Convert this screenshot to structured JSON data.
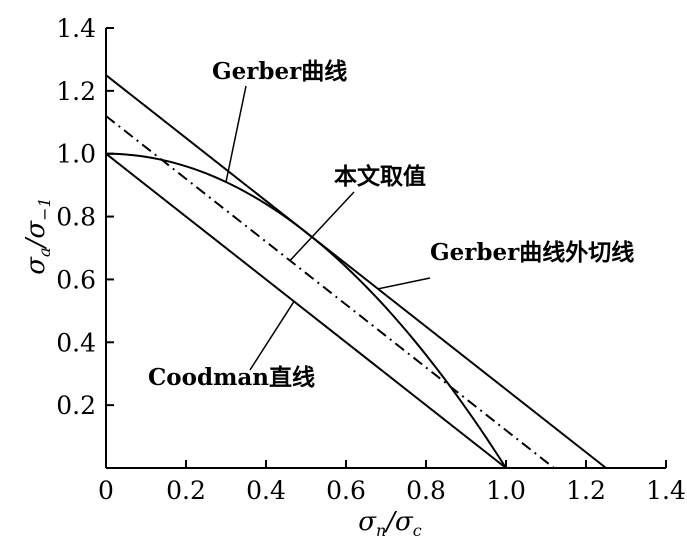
{
  "chart_data": {
    "type": "line",
    "title": "",
    "xlabel": "σn/σc",
    "ylabel": "σa/σ−1",
    "xlim": [
      0,
      1.4
    ],
    "ylim": [
      0,
      1.4
    ],
    "xticks": [
      "0",
      "0.2",
      "0.4",
      "0.6",
      "0.8",
      "1.0",
      "1.2",
      "1.4"
    ],
    "yticks": [
      "0.2",
      "0.4",
      "0.6",
      "0.8",
      "1.0",
      "1.2",
      "1.4"
    ],
    "grid": false,
    "series": [
      {
        "label": "Gerber曲线",
        "style": "solid",
        "x": [
          0,
          0.1,
          0.2,
          0.3,
          0.4,
          0.5,
          0.6,
          0.7,
          0.8,
          0.9,
          1.0
        ],
        "y": [
          1.0,
          0.99,
          0.96,
          0.91,
          0.84,
          0.75,
          0.64,
          0.51,
          0.36,
          0.19,
          0.0
        ]
      },
      {
        "label": "Gerber曲线外切线",
        "style": "solid",
        "x": [
          0,
          1.25
        ],
        "y": [
          1.25,
          0
        ]
      },
      {
        "label": "本文取值",
        "style": "dash-dot",
        "x": [
          0,
          1.12
        ],
        "y": [
          1.12,
          0
        ]
      },
      {
        "label": "Coodman直线",
        "style": "solid",
        "x": [
          0,
          1.0
        ],
        "y": [
          1.0,
          0
        ]
      }
    ],
    "annotations": [
      {
        "text": "Gerber曲线",
        "target": [
          0.3,
          0.91
        ]
      },
      {
        "text": "本文取值",
        "target": [
          0.46,
          0.66
        ]
      },
      {
        "text": "Gerber曲线外切线",
        "target": [
          0.68,
          0.57
        ]
      },
      {
        "text": "Coodman直线",
        "target": [
          0.47,
          0.53
        ]
      }
    ]
  }
}
